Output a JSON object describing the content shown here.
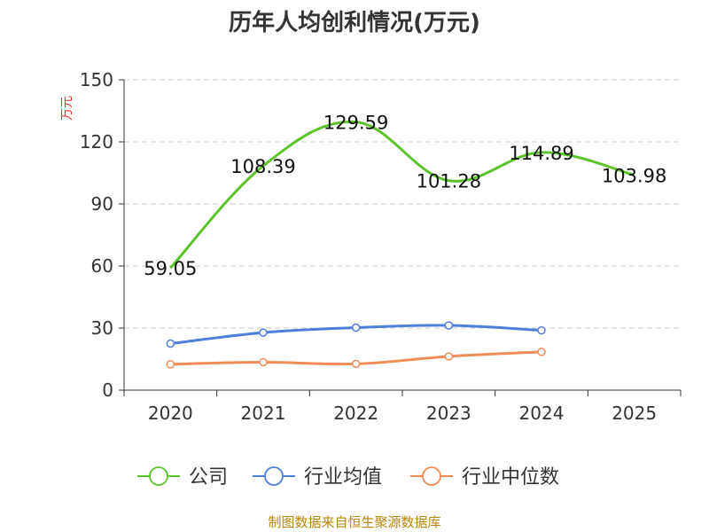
{
  "chart_data": {
    "type": "line",
    "title": "历年人均创利情况(万元)",
    "ylabel": "万元",
    "xlabel": "",
    "categories": [
      "2020",
      "2021",
      "2022",
      "2023",
      "2024",
      "2025"
    ],
    "ylim": [
      0,
      150
    ],
    "yticks": [
      0,
      30,
      60,
      90,
      120,
      150
    ],
    "grid": true,
    "legend_position": "bottom",
    "series": [
      {
        "name": "公司",
        "color": "#5dc22b",
        "values": [
          59.05,
          108.39,
          129.59,
          101.28,
          114.89,
          103.98
        ],
        "labels": [
          "59.05",
          "108.39",
          "129.59",
          "101.28",
          "114.89",
          "103.98"
        ],
        "show_markers": false,
        "show_labels": true
      },
      {
        "name": "行业均值",
        "color": "#4e7fdb",
        "values": [
          22.5,
          27.8,
          30.2,
          31.3,
          28.9,
          null
        ],
        "show_markers": true,
        "show_labels": false
      },
      {
        "name": "行业中位数",
        "color": "#f28c56",
        "values": [
          12.5,
          13.5,
          12.7,
          16.3,
          18.5,
          null
        ],
        "show_markers": true,
        "show_labels": false
      }
    ]
  },
  "footer": {
    "source": "制图数据来自恒生聚源数据库"
  }
}
